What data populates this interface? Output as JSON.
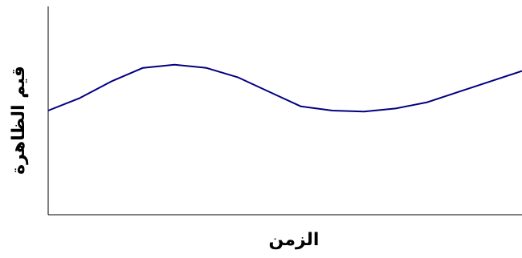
{
  "chart_data": {
    "type": "line",
    "title": "",
    "xlabel": "الزمن",
    "ylabel": "قيم الظاهرة",
    "x": [
      0,
      1,
      2,
      3,
      4,
      5,
      6,
      7,
      8,
      9,
      10,
      11,
      12,
      13,
      14,
      15
    ],
    "series": [
      {
        "values": [
          50,
          56,
          64,
          70.5,
          72,
          70.5,
          66,
          59,
          52,
          50,
          49.5,
          51,
          54,
          59,
          64,
          69
        ]
      }
    ],
    "xlim": [
      0,
      15
    ],
    "ylim": [
      0,
      100
    ],
    "grid": false,
    "colors": {
      "line": "#000080",
      "axis": "#000000"
    }
  }
}
